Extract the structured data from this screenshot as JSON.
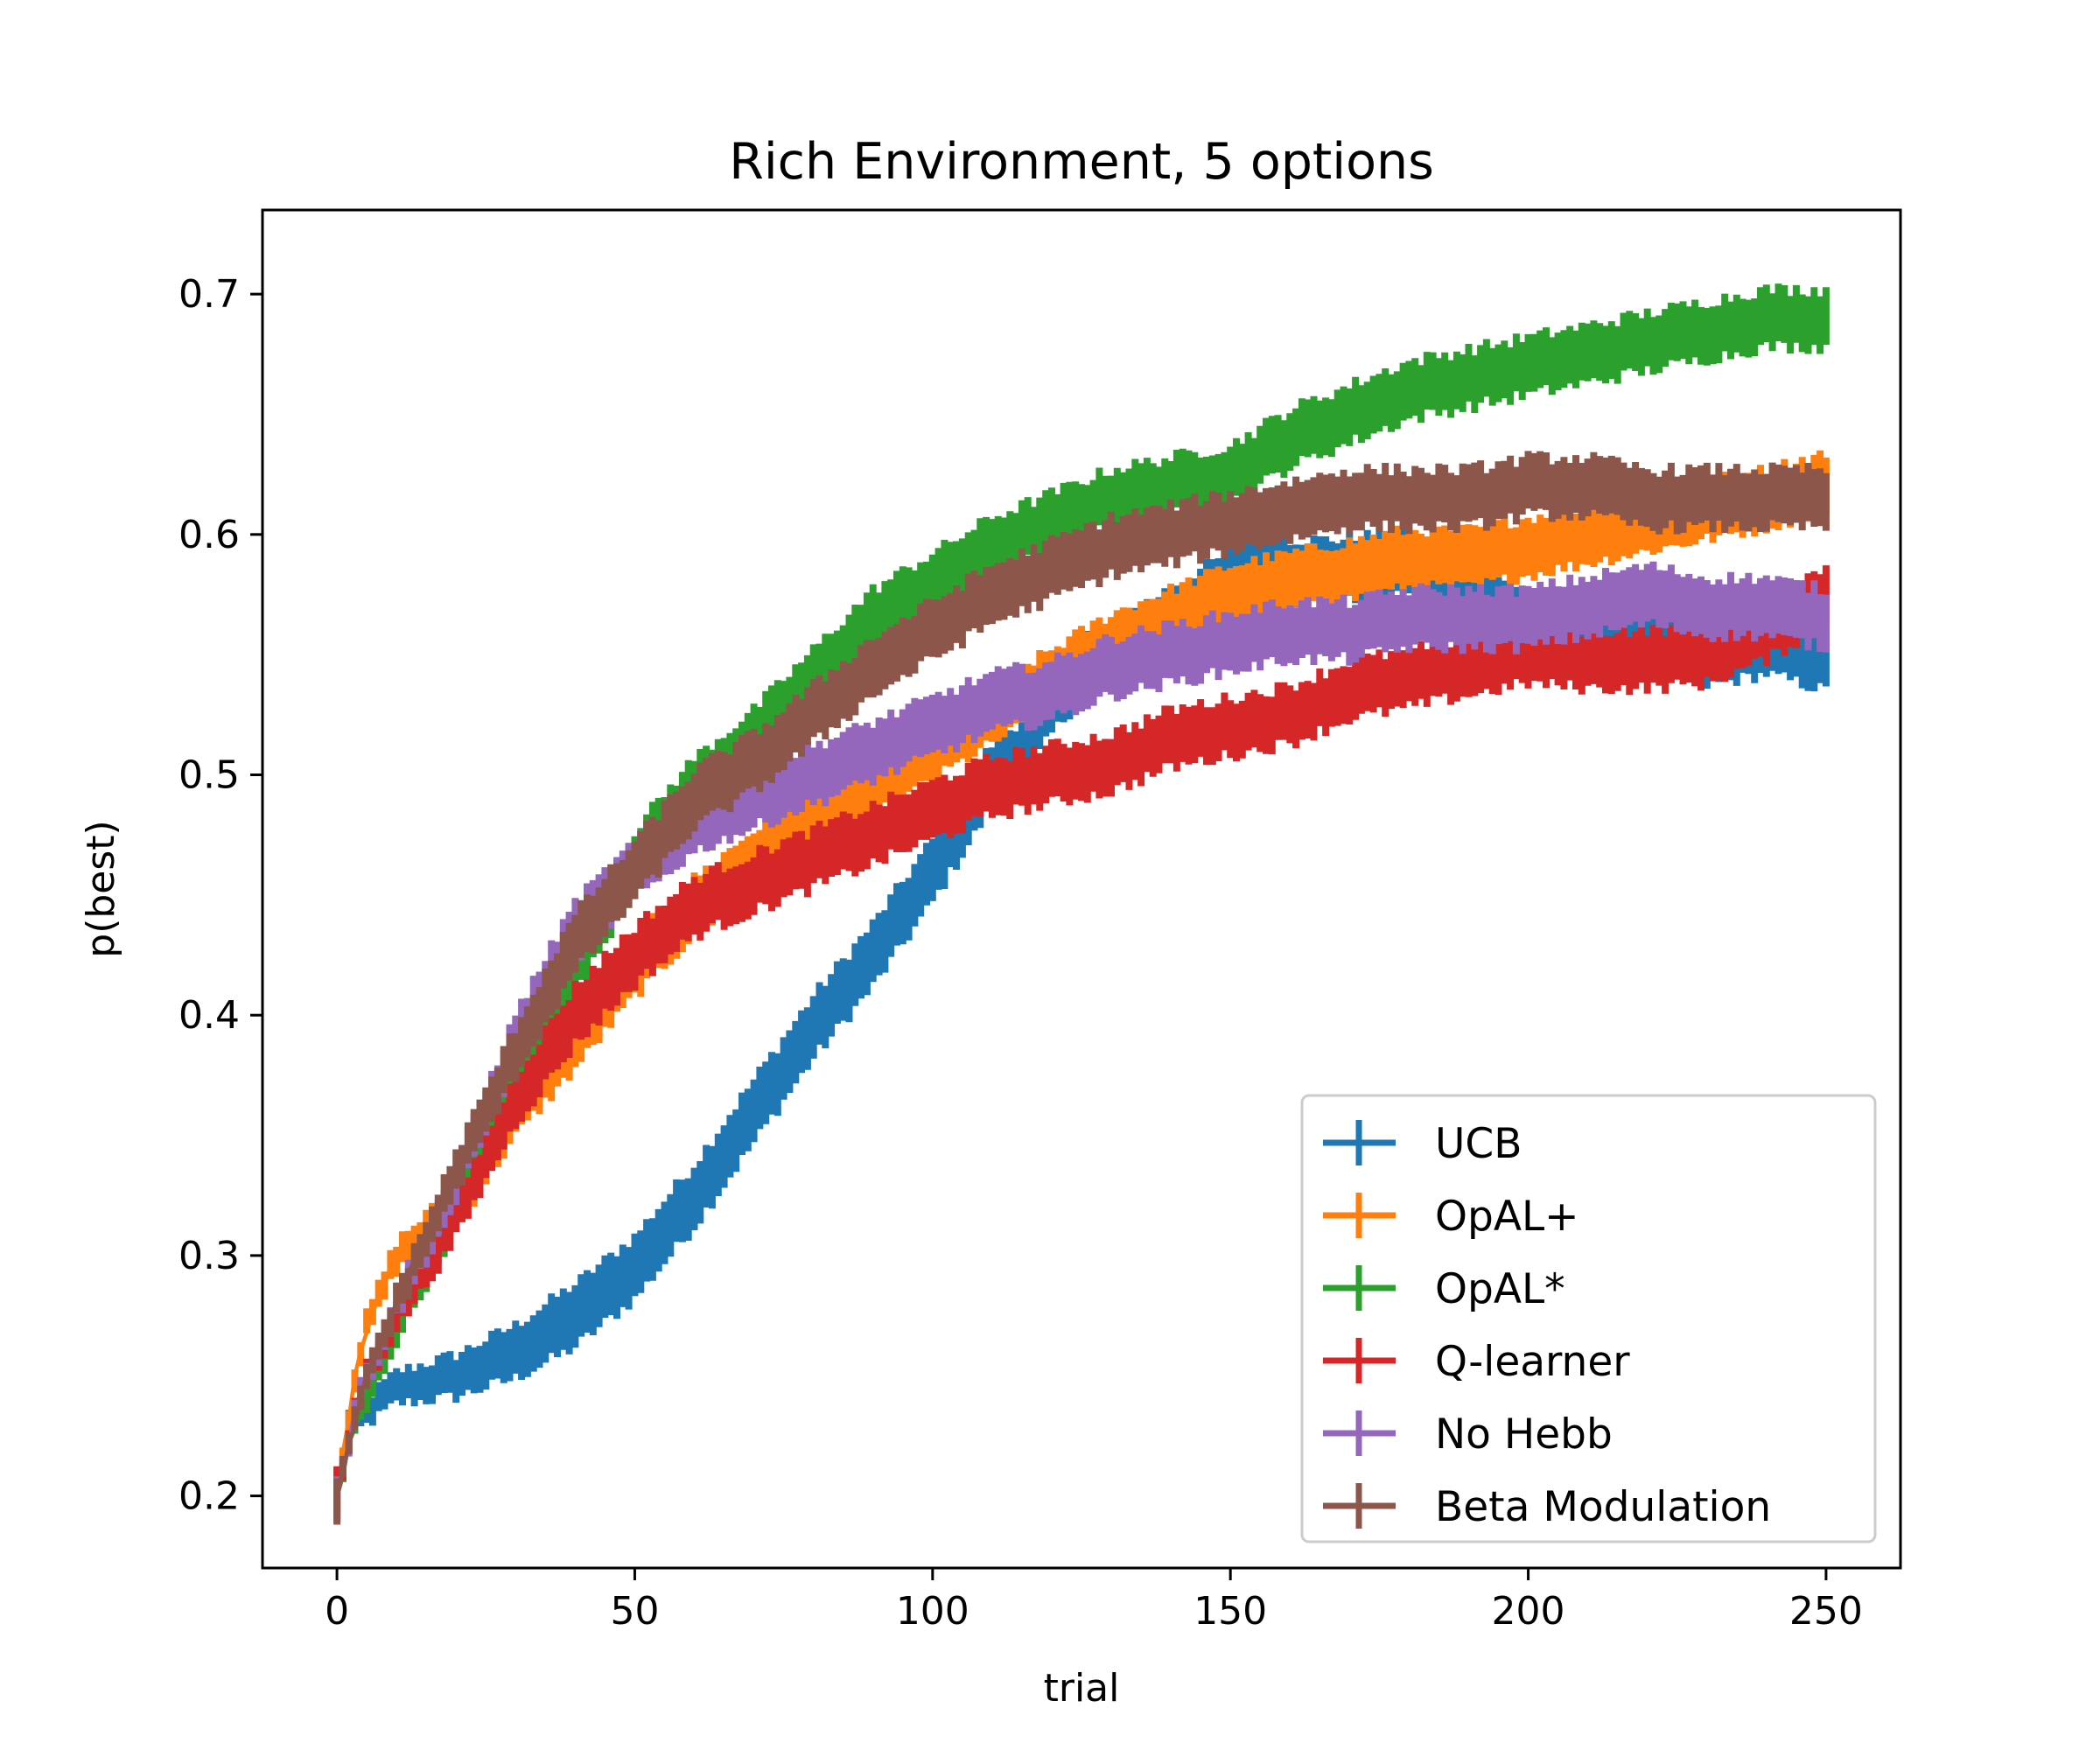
{
  "chart_data": {
    "type": "line",
    "title": "Rich Environment, 5 options",
    "xlabel": "trial",
    "ylabel": "p(best)",
    "xlim": [
      -12.5,
      262.5
    ],
    "ylim": [
      0.17,
      0.735
    ],
    "xticks": [
      0,
      50,
      100,
      150,
      200,
      250
    ],
    "yticks": [
      0.2,
      0.3,
      0.4,
      0.5,
      0.6,
      0.7
    ],
    "xtick_labels": [
      "0",
      "50",
      "100",
      "150",
      "200",
      "250"
    ],
    "ytick_labels": [
      "0.2",
      "0.3",
      "0.4",
      "0.5",
      "0.6",
      "0.7"
    ],
    "grid": false,
    "legend_position": "lower-right",
    "error_bars": true,
    "series": [
      {
        "name": "UCB",
        "color": "#1f77b4",
        "err": 0.013,
        "points": [
          [
            0,
            0.2
          ],
          [
            2,
            0.23
          ],
          [
            5,
            0.235
          ],
          [
            10,
            0.245
          ],
          [
            20,
            0.25
          ],
          [
            30,
            0.26
          ],
          [
            40,
            0.275
          ],
          [
            50,
            0.295
          ],
          [
            60,
            0.325
          ],
          [
            70,
            0.36
          ],
          [
            80,
            0.395
          ],
          [
            90,
            0.425
          ],
          [
            100,
            0.46
          ],
          [
            105,
            0.48
          ],
          [
            110,
            0.5
          ],
          [
            115,
            0.51
          ],
          [
            120,
            0.53
          ],
          [
            125,
            0.545
          ],
          [
            130,
            0.55
          ],
          [
            140,
            0.565
          ],
          [
            150,
            0.58
          ],
          [
            155,
            0.59
          ],
          [
            160,
            0.585
          ],
          [
            170,
            0.585
          ],
          [
            180,
            0.59
          ],
          [
            185,
            0.575
          ],
          [
            190,
            0.575
          ],
          [
            195,
            0.57
          ],
          [
            200,
            0.56
          ],
          [
            210,
            0.56
          ],
          [
            220,
            0.555
          ],
          [
            230,
            0.55
          ],
          [
            240,
            0.555
          ],
          [
            250,
            0.548
          ]
        ]
      },
      {
        "name": "OpAL+",
        "color": "#ff7f0e",
        "err": 0.012,
        "points": [
          [
            0,
            0.2
          ],
          [
            3,
            0.25
          ],
          [
            5,
            0.27
          ],
          [
            10,
            0.3
          ],
          [
            20,
            0.32
          ],
          [
            30,
            0.36
          ],
          [
            40,
            0.39
          ],
          [
            50,
            0.42
          ],
          [
            60,
            0.445
          ],
          [
            70,
            0.465
          ],
          [
            80,
            0.48
          ],
          [
            90,
            0.495
          ],
          [
            100,
            0.51
          ],
          [
            110,
            0.525
          ],
          [
            120,
            0.54
          ],
          [
            130,
            0.555
          ],
          [
            140,
            0.565
          ],
          [
            150,
            0.575
          ],
          [
            160,
            0.58
          ],
          [
            170,
            0.585
          ],
          [
            180,
            0.59
          ],
          [
            190,
            0.59
          ],
          [
            200,
            0.595
          ],
          [
            210,
            0.6
          ],
          [
            220,
            0.605
          ],
          [
            230,
            0.61
          ],
          [
            240,
            0.615
          ],
          [
            250,
            0.622
          ]
        ]
      },
      {
        "name": "OpAL*",
        "color": "#2ca02c",
        "err": 0.012,
        "points": [
          [
            0,
            0.2
          ],
          [
            3,
            0.23
          ],
          [
            5,
            0.24
          ],
          [
            10,
            0.27
          ],
          [
            20,
            0.32
          ],
          [
            30,
            0.37
          ],
          [
            40,
            0.42
          ],
          [
            50,
            0.465
          ],
          [
            60,
            0.495
          ],
          [
            70,
            0.515
          ],
          [
            80,
            0.54
          ],
          [
            90,
            0.565
          ],
          [
            100,
            0.58
          ],
          [
            110,
            0.595
          ],
          [
            120,
            0.605
          ],
          [
            130,
            0.615
          ],
          [
            140,
            0.62
          ],
          [
            150,
            0.625
          ],
          [
            160,
            0.64
          ],
          [
            170,
            0.65
          ],
          [
            180,
            0.66
          ],
          [
            190,
            0.665
          ],
          [
            200,
            0.67
          ],
          [
            210,
            0.675
          ],
          [
            220,
            0.68
          ],
          [
            230,
            0.685
          ],
          [
            240,
            0.69
          ],
          [
            250,
            0.69
          ]
        ]
      },
      {
        "name": "Q-learner",
        "color": "#d62728",
        "err": 0.012,
        "points": [
          [
            0,
            0.2
          ],
          [
            3,
            0.235
          ],
          [
            5,
            0.25
          ],
          [
            10,
            0.275
          ],
          [
            20,
            0.315
          ],
          [
            30,
            0.365
          ],
          [
            40,
            0.4
          ],
          [
            50,
            0.425
          ],
          [
            60,
            0.445
          ],
          [
            70,
            0.455
          ],
          [
            80,
            0.465
          ],
          [
            90,
            0.475
          ],
          [
            100,
            0.485
          ],
          [
            110,
            0.495
          ],
          [
            120,
            0.5
          ],
          [
            130,
            0.505
          ],
          [
            140,
            0.515
          ],
          [
            150,
            0.52
          ],
          [
            160,
            0.525
          ],
          [
            170,
            0.535
          ],
          [
            180,
            0.54
          ],
          [
            190,
            0.545
          ],
          [
            200,
            0.55
          ],
          [
            210,
            0.548
          ],
          [
            220,
            0.548
          ],
          [
            230,
            0.55
          ],
          [
            240,
            0.56
          ],
          [
            250,
            0.575
          ]
        ]
      },
      {
        "name": "No Hebb",
        "color": "#9467bd",
        "err": 0.012,
        "points": [
          [
            0,
            0.2
          ],
          [
            3,
            0.235
          ],
          [
            5,
            0.25
          ],
          [
            10,
            0.28
          ],
          [
            20,
            0.33
          ],
          [
            30,
            0.39
          ],
          [
            40,
            0.435
          ],
          [
            50,
            0.46
          ],
          [
            60,
            0.48
          ],
          [
            70,
            0.49
          ],
          [
            80,
            0.5
          ],
          [
            90,
            0.51
          ],
          [
            100,
            0.52
          ],
          [
            110,
            0.53
          ],
          [
            120,
            0.535
          ],
          [
            130,
            0.545
          ],
          [
            140,
            0.55
          ],
          [
            150,
            0.555
          ],
          [
            160,
            0.56
          ],
          [
            170,
            0.56
          ],
          [
            180,
            0.565
          ],
          [
            190,
            0.565
          ],
          [
            200,
            0.565
          ],
          [
            210,
            0.57
          ],
          [
            220,
            0.575
          ],
          [
            230,
            0.57
          ],
          [
            240,
            0.57
          ],
          [
            250,
            0.565
          ]
        ]
      },
      {
        "name": "Beta Modulation",
        "color": "#8c564b",
        "err": 0.012,
        "points": [
          [
            0,
            0.2
          ],
          [
            3,
            0.23
          ],
          [
            5,
            0.25
          ],
          [
            10,
            0.28
          ],
          [
            20,
            0.335
          ],
          [
            30,
            0.385
          ],
          [
            40,
            0.43
          ],
          [
            50,
            0.46
          ],
          [
            60,
            0.49
          ],
          [
            70,
            0.505
          ],
          [
            80,
            0.525
          ],
          [
            90,
            0.545
          ],
          [
            100,
            0.56
          ],
          [
            110,
            0.575
          ],
          [
            120,
            0.585
          ],
          [
            130,
            0.595
          ],
          [
            140,
            0.6
          ],
          [
            150,
            0.605
          ],
          [
            160,
            0.61
          ],
          [
            170,
            0.615
          ],
          [
            180,
            0.615
          ],
          [
            190,
            0.615
          ],
          [
            200,
            0.62
          ],
          [
            210,
            0.62
          ],
          [
            220,
            0.615
          ],
          [
            230,
            0.615
          ],
          [
            240,
            0.615
          ],
          [
            250,
            0.615
          ]
        ]
      }
    ]
  }
}
